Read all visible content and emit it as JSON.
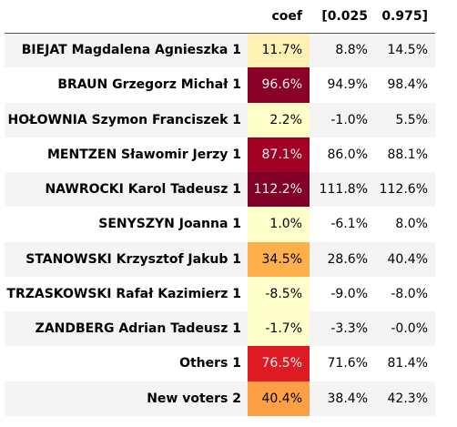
{
  "table": {
    "columns": [
      "",
      "coef",
      "[0.025",
      "0.975]"
    ],
    "rows": [
      {
        "label": "BIEJAT Magdalena Agnieszka 1",
        "coef": "11.7%",
        "lo": "8.8%",
        "hi": "14.5%",
        "coef_bg": "#fff0b3",
        "coef_fg": "#000000"
      },
      {
        "label": "BRAUN Grzegorz Michał 1",
        "coef": "96.6%",
        "lo": "94.9%",
        "hi": "98.4%",
        "coef_bg": "#8a0026",
        "coef_fg": "#f1f1f1"
      },
      {
        "label": "HOŁOWNIA Szymon Franciszek 1",
        "coef": "2.2%",
        "lo": "-1.0%",
        "hi": "5.5%",
        "coef_bg": "#ffffc8",
        "coef_fg": "#000000"
      },
      {
        "label": "MENTZEN Sławomir Jerzy 1",
        "coef": "87.1%",
        "lo": "86.0%",
        "hi": "88.1%",
        "coef_bg": "#a30026",
        "coef_fg": "#f1f1f1"
      },
      {
        "label": "NAWROCKI Karol Tadeusz 1",
        "coef": "112.2%",
        "lo": "111.8%",
        "hi": "112.6%",
        "coef_bg": "#800026",
        "coef_fg": "#f1f1f1"
      },
      {
        "label": "SENYSZYN Joanna 1",
        "coef": "1.0%",
        "lo": "-6.1%",
        "hi": "8.0%",
        "coef_bg": "#ffffcb",
        "coef_fg": "#000000"
      },
      {
        "label": "STANOWSKI Krzysztof Jakub 1",
        "coef": "34.5%",
        "lo": "28.6%",
        "hi": "40.4%",
        "coef_bg": "#fdb04c",
        "coef_fg": "#000000"
      },
      {
        "label": "TRZASKOWSKI Rafał Kazimierz 1",
        "coef": "-8.5%",
        "lo": "-9.0%",
        "hi": "-8.0%",
        "coef_bg": "#ffffcc",
        "coef_fg": "#000000"
      },
      {
        "label": "ZANDBERG Adrian Tadeusz 1",
        "coef": "-1.7%",
        "lo": "-3.3%",
        "hi": "-0.0%",
        "coef_bg": "#ffffcc",
        "coef_fg": "#000000"
      },
      {
        "label": "Others 1",
        "coef": "76.5%",
        "lo": "71.6%",
        "hi": "81.4%",
        "coef_bg": "#de1b22",
        "coef_fg": "#f1f1f1"
      },
      {
        "label": "New voters 2",
        "coef": "40.4%",
        "lo": "38.4%",
        "hi": "42.3%",
        "coef_bg": "#fd9f44",
        "coef_fg": "#000000"
      }
    ]
  }
}
